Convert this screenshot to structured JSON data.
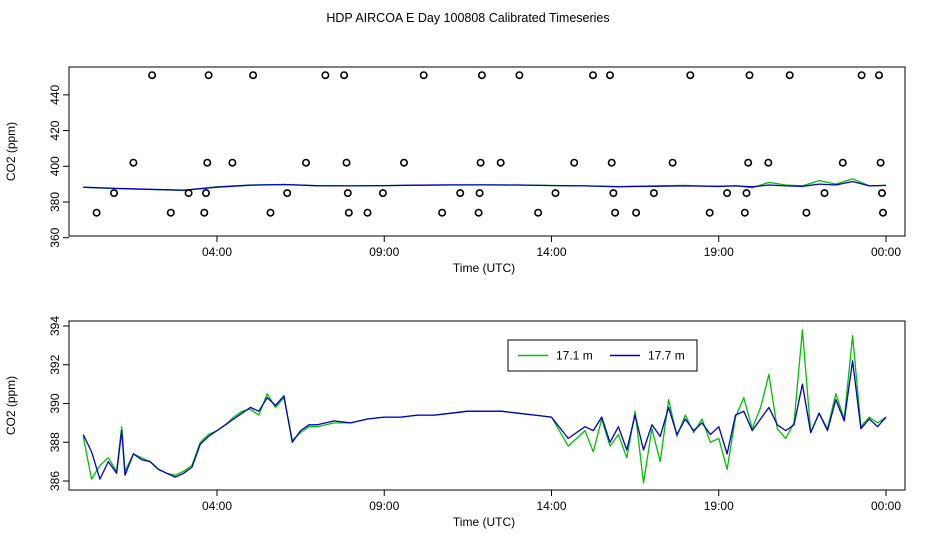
{
  "title": "HDP AIRCOA E  Day 100808  Calibrated Timeseries",
  "colors": {
    "green": "#00c000",
    "blue": "#0000c8",
    "axis": "#000000"
  },
  "chart_data": [
    {
      "type": "scatter",
      "xlabel": "Time (UTC)",
      "ylabel": "CO2 (ppm)",
      "x_ticks": [
        {
          "value": 4,
          "label": "04:00"
        },
        {
          "value": 9,
          "label": "09:00"
        },
        {
          "value": 14,
          "label": "14:00"
        },
        {
          "value": 19,
          "label": "19:00"
        },
        {
          "value": 24,
          "label": "00:00"
        }
      ],
      "y_ticks": [
        360,
        380,
        400,
        420,
        440
      ],
      "xlim": [
        0,
        24
      ],
      "ylim": [
        366,
        450
      ],
      "cal_points": [
        {
          "x": 0.4,
          "y": 374
        },
        {
          "x": 0.92,
          "y": 385
        },
        {
          "x": 1.5,
          "y": 402
        },
        {
          "x": 2.06,
          "y": 451
        },
        {
          "x": 2.62,
          "y": 374
        },
        {
          "x": 3.15,
          "y": 385
        },
        {
          "x": 3.62,
          "y": 374
        },
        {
          "x": 3.67,
          "y": 385
        },
        {
          "x": 3.71,
          "y": 402
        },
        {
          "x": 3.75,
          "y": 451
        },
        {
          "x": 4.46,
          "y": 402
        },
        {
          "x": 5.08,
          "y": 451
        },
        {
          "x": 5.6,
          "y": 374
        },
        {
          "x": 6.1,
          "y": 385
        },
        {
          "x": 6.66,
          "y": 402
        },
        {
          "x": 7.24,
          "y": 451
        },
        {
          "x": 7.8,
          "y": 451
        },
        {
          "x": 7.87,
          "y": 402
        },
        {
          "x": 7.91,
          "y": 385
        },
        {
          "x": 7.94,
          "y": 374
        },
        {
          "x": 8.96,
          "y": 385
        },
        {
          "x": 8.5,
          "y": 374
        },
        {
          "x": 9.59,
          "y": 402
        },
        {
          "x": 10.18,
          "y": 451
        },
        {
          "x": 10.73,
          "y": 374
        },
        {
          "x": 11.27,
          "y": 385
        },
        {
          "x": 11.82,
          "y": 374
        },
        {
          "x": 11.85,
          "y": 385
        },
        {
          "x": 11.88,
          "y": 402
        },
        {
          "x": 11.92,
          "y": 451
        },
        {
          "x": 12.48,
          "y": 402
        },
        {
          "x": 13.04,
          "y": 451
        },
        {
          "x": 13.6,
          "y": 374
        },
        {
          "x": 14.12,
          "y": 385
        },
        {
          "x": 14.68,
          "y": 402
        },
        {
          "x": 15.24,
          "y": 451
        },
        {
          "x": 15.75,
          "y": 451
        },
        {
          "x": 15.8,
          "y": 402
        },
        {
          "x": 15.85,
          "y": 385
        },
        {
          "x": 15.9,
          "y": 374
        },
        {
          "x": 16.53,
          "y": 374
        },
        {
          "x": 17.06,
          "y": 385
        },
        {
          "x": 17.62,
          "y": 402
        },
        {
          "x": 18.15,
          "y": 451
        },
        {
          "x": 18.73,
          "y": 374
        },
        {
          "x": 19.25,
          "y": 385
        },
        {
          "x": 19.78,
          "y": 374
        },
        {
          "x": 19.83,
          "y": 385
        },
        {
          "x": 19.88,
          "y": 402
        },
        {
          "x": 19.92,
          "y": 451
        },
        {
          "x": 20.48,
          "y": 402
        },
        {
          "x": 21.12,
          "y": 451
        },
        {
          "x": 21.62,
          "y": 374
        },
        {
          "x": 22.16,
          "y": 385
        },
        {
          "x": 22.71,
          "y": 402
        },
        {
          "x": 23.27,
          "y": 451
        },
        {
          "x": 23.79,
          "y": 451
        },
        {
          "x": 23.84,
          "y": 402
        },
        {
          "x": 23.88,
          "y": 385
        },
        {
          "x": 23.91,
          "y": 374
        }
      ],
      "series": [
        {
          "color": "green",
          "x": [
            0.0,
            1.0,
            2.0,
            3.0,
            4.0,
            5.0,
            6.0,
            7.0,
            8.0,
            9.0,
            10.0,
            11.0,
            12.0,
            13.0,
            14.0,
            15.0,
            16.0,
            17.0,
            18.0,
            19.0,
            19.5,
            20.0,
            20.5,
            21.0,
            21.5,
            22.0,
            22.5,
            23.0,
            23.5,
            24.0
          ],
          "y": [
            388.2,
            387.5,
            387.0,
            386.5,
            388.5,
            389.5,
            389.8,
            389.0,
            389.0,
            389.2,
            389.4,
            389.5,
            389.6,
            389.5,
            389.3,
            389.0,
            388.5,
            389.0,
            389.3,
            388.6,
            389.2,
            388.0,
            391.0,
            389.5,
            389.0,
            392.0,
            390.0,
            393.0,
            389.0,
            389.3
          ]
        },
        {
          "color": "blue",
          "x": [
            0.0,
            1.0,
            2.0,
            3.0,
            4.0,
            5.0,
            6.0,
            7.0,
            8.0,
            9.0,
            10.0,
            11.0,
            12.0,
            13.0,
            14.0,
            15.0,
            16.0,
            17.0,
            18.0,
            19.0,
            19.5,
            20.0,
            20.5,
            21.0,
            21.5,
            22.0,
            22.5,
            23.0,
            23.5,
            24.0
          ],
          "y": [
            388.3,
            387.6,
            387.1,
            386.6,
            388.3,
            389.4,
            389.8,
            389.1,
            389.0,
            389.2,
            389.4,
            389.6,
            389.6,
            389.5,
            389.2,
            389.0,
            388.6,
            388.8,
            389.0,
            388.8,
            389.0,
            388.5,
            389.5,
            389.0,
            388.8,
            390.0,
            389.5,
            391.5,
            389.0,
            389.3
          ]
        }
      ]
    },
    {
      "type": "line",
      "xlabel": "Time (UTC)",
      "ylabel": "CO2 (ppm)",
      "x_ticks": [
        {
          "value": 4,
          "label": "04:00"
        },
        {
          "value": 9,
          "label": "09:00"
        },
        {
          "value": 14,
          "label": "14:00"
        },
        {
          "value": 19,
          "label": "19:00"
        },
        {
          "value": 24,
          "label": "00:00"
        }
      ],
      "y_ticks": [
        386,
        388,
        390,
        392,
        394
      ],
      "xlim": [
        0,
        24
      ],
      "ylim": [
        386,
        394
      ],
      "legend": {
        "position": "top-center"
      },
      "series": [
        {
          "name": "17.1 m",
          "color": "green",
          "x": [
            0.0,
            0.25,
            0.5,
            0.75,
            1.0,
            1.15,
            1.25,
            1.5,
            1.75,
            2.0,
            2.25,
            2.5,
            2.75,
            3.0,
            3.25,
            3.5,
            3.75,
            4.0,
            4.25,
            4.5,
            4.75,
            5.0,
            5.25,
            5.5,
            5.75,
            6.0,
            6.25,
            6.5,
            6.75,
            7.0,
            7.5,
            8.0,
            8.5,
            9.0,
            9.5,
            10.0,
            10.5,
            11.0,
            11.5,
            12.0,
            12.5,
            13.0,
            13.5,
            14.0,
            14.5,
            15.0,
            15.25,
            15.5,
            15.75,
            16.0,
            16.25,
            16.5,
            16.75,
            17.0,
            17.25,
            17.5,
            17.75,
            18.0,
            18.25,
            18.5,
            18.75,
            19.0,
            19.25,
            19.5,
            19.75,
            20.0,
            20.25,
            20.5,
            20.75,
            21.0,
            21.25,
            21.5,
            21.75,
            22.0,
            22.25,
            22.5,
            22.75,
            23.0,
            23.25,
            23.5,
            23.75,
            24.0
          ],
          "y": [
            388.3,
            386.1,
            386.8,
            387.2,
            386.5,
            388.8,
            386.5,
            387.4,
            387.2,
            387.0,
            386.6,
            386.4,
            386.3,
            386.5,
            386.8,
            388.0,
            388.4,
            388.6,
            388.9,
            389.3,
            389.6,
            389.7,
            389.4,
            390.5,
            389.8,
            390.3,
            388.1,
            388.5,
            388.8,
            388.8,
            389.0,
            389.0,
            389.2,
            389.3,
            389.3,
            389.4,
            389.4,
            389.5,
            389.6,
            389.6,
            389.6,
            389.5,
            389.4,
            389.3,
            387.8,
            388.6,
            387.5,
            389.2,
            387.8,
            388.4,
            387.2,
            389.6,
            385.9,
            388.7,
            387.0,
            390.2,
            388.3,
            389.4,
            388.5,
            389.2,
            388.0,
            388.2,
            386.6,
            389.3,
            390.3,
            388.7,
            389.8,
            391.5,
            388.7,
            388.2,
            389.0,
            393.8,
            388.5,
            389.5,
            388.7,
            390.5,
            389.2,
            393.5,
            388.8,
            389.3,
            389.0,
            389.3
          ]
        },
        {
          "name": "17.7 m",
          "color": "blue",
          "x": [
            0.0,
            0.25,
            0.5,
            0.75,
            1.0,
            1.15,
            1.25,
            1.5,
            1.75,
            2.0,
            2.25,
            2.5,
            2.75,
            3.0,
            3.25,
            3.5,
            3.75,
            4.0,
            4.25,
            4.5,
            4.75,
            5.0,
            5.25,
            5.5,
            5.75,
            6.0,
            6.25,
            6.5,
            6.75,
            7.0,
            7.5,
            8.0,
            8.5,
            9.0,
            9.5,
            10.0,
            10.5,
            11.0,
            11.5,
            12.0,
            12.5,
            13.0,
            13.5,
            14.0,
            14.5,
            15.0,
            15.25,
            15.5,
            15.75,
            16.0,
            16.25,
            16.5,
            16.75,
            17.0,
            17.25,
            17.5,
            17.75,
            18.0,
            18.25,
            18.5,
            18.75,
            19.0,
            19.25,
            19.5,
            19.75,
            20.0,
            20.25,
            20.5,
            20.75,
            21.0,
            21.25,
            21.5,
            21.75,
            22.0,
            22.25,
            22.5,
            22.75,
            23.0,
            23.25,
            23.5,
            23.75,
            24.0
          ],
          "y": [
            388.4,
            387.5,
            386.1,
            387.0,
            386.4,
            388.6,
            386.3,
            387.4,
            387.1,
            387.0,
            386.6,
            386.4,
            386.2,
            386.4,
            386.7,
            387.9,
            388.3,
            388.6,
            388.9,
            389.2,
            389.5,
            389.8,
            389.6,
            390.3,
            389.9,
            390.4,
            388.0,
            388.6,
            388.9,
            388.9,
            389.1,
            389.0,
            389.2,
            389.3,
            389.3,
            389.4,
            389.4,
            389.5,
            389.6,
            389.6,
            389.6,
            389.5,
            389.4,
            389.3,
            388.2,
            388.8,
            388.6,
            389.3,
            388.0,
            388.8,
            387.6,
            389.4,
            387.6,
            388.9,
            388.3,
            389.8,
            388.4,
            389.2,
            388.6,
            389.0,
            388.4,
            388.8,
            387.4,
            389.4,
            389.6,
            388.6,
            389.2,
            389.8,
            388.9,
            388.6,
            388.9,
            391.0,
            388.5,
            389.5,
            388.6,
            390.2,
            389.1,
            392.2,
            388.7,
            389.2,
            388.8,
            389.3
          ]
        }
      ]
    }
  ]
}
